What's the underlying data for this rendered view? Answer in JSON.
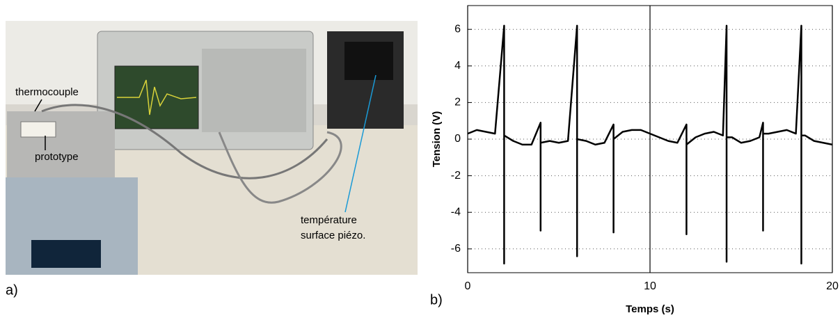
{
  "photo": {
    "labels": [
      "thermocouple",
      "prototype",
      "température",
      "surface piézo."
    ],
    "panel_label": "a)"
  },
  "chart_data": {
    "type": "line",
    "panel_label": "b)",
    "xlabel": "Temps (s)",
    "ylabel": "Tension (V)",
    "x": [
      0,
      0.5,
      1,
      1.5,
      2,
      2,
      2,
      2.5,
      3,
      3.5,
      4,
      4,
      4,
      4.5,
      5,
      5.5,
      6,
      6,
      6,
      6.5,
      7,
      7.5,
      8,
      8,
      8,
      8.5,
      9,
      9.5,
      10,
      10.5,
      11,
      11.5,
      12,
      12,
      12,
      12.5,
      13,
      13.5,
      14,
      14.2,
      14.2,
      14.2,
      14.5,
      15,
      15.5,
      16,
      16.2,
      16.2,
      16.2,
      16.5,
      17,
      17.5,
      18,
      18.3,
      18.3,
      18.3,
      18.5,
      19,
      19.5,
      20
    ],
    "series": [
      {
        "color": "#000000",
        "values": [
          0.3,
          0.5,
          0.4,
          0.3,
          6.2,
          -6.8,
          0.2,
          -0.1,
          -0.3,
          -0.3,
          0.9,
          -5,
          -0.2,
          -0.1,
          -0.2,
          -0.1,
          6.2,
          -6.4,
          0,
          -0.1,
          -0.3,
          -0.2,
          0.8,
          -5.1,
          0,
          0.4,
          0.5,
          0.5,
          0.3,
          0.1,
          -0.1,
          -0.2,
          0.8,
          -5.2,
          -0.3,
          0.1,
          0.3,
          0.4,
          0.2,
          6.2,
          -6.7,
          0.1,
          0.1,
          -0.2,
          -0.1,
          0.1,
          0.9,
          -5,
          0.3,
          0.3,
          0.4,
          0.5,
          0.3,
          6.2,
          -6.8,
          0.2,
          0.2,
          -0.1,
          -0.2,
          -0.3
        ]
      }
    ],
    "xlim": [
      0,
      20
    ],
    "xticks": [
      0,
      10,
      20
    ],
    "ylim": [
      -7.3,
      7.3
    ],
    "yticks": [
      -6,
      -4,
      -2,
      0,
      2,
      4,
      6
    ],
    "grid": true
  }
}
